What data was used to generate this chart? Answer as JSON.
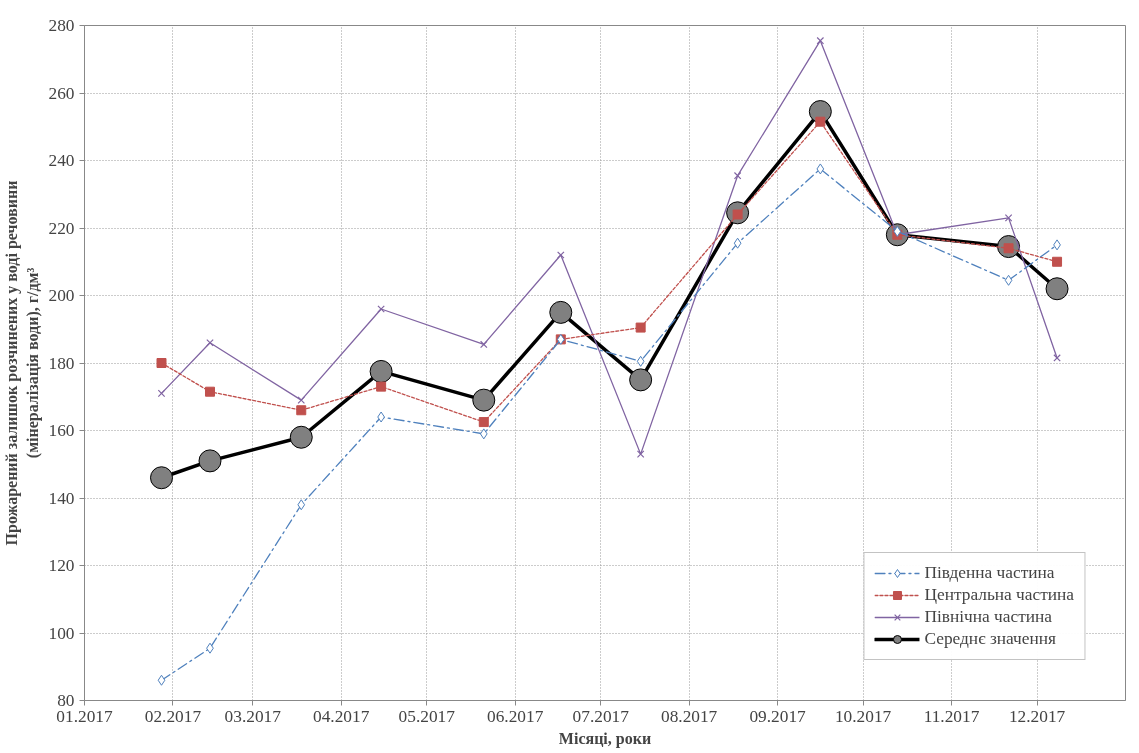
{
  "chart_data": {
    "type": "line",
    "xlabel": "Місяці, роки",
    "ylabel": "Прожарений залишок розчинених у воді речовини\n(мінералізація води), г/дм³",
    "x": [
      "2017-01-28",
      "2017-02-14",
      "2017-03-18",
      "2017-04-15",
      "2017-05-21",
      "2017-06-17",
      "2017-07-15",
      "2017-08-18",
      "2017-09-16",
      "2017-10-13",
      "2017-11-21",
      "2017-12-08"
    ],
    "xlim": [
      "2017-01-01",
      "2018-01-01"
    ],
    "xticks": [
      {
        "value": "2017-01-01",
        "label": "01.2017"
      },
      {
        "value": "2017-02-01",
        "label": "02.2017"
      },
      {
        "value": "2017-03-01",
        "label": "03.2017"
      },
      {
        "value": "2017-04-01",
        "label": "04.2017"
      },
      {
        "value": "2017-05-01",
        "label": "05.2017"
      },
      {
        "value": "2017-06-01",
        "label": "06.2017"
      },
      {
        "value": "2017-07-01",
        "label": "07.2017"
      },
      {
        "value": "2017-08-01",
        "label": "08.2017"
      },
      {
        "value": "2017-09-01",
        "label": "09.2017"
      },
      {
        "value": "2017-10-01",
        "label": "10.2017"
      },
      {
        "value": "2017-11-01",
        "label": "11.2017"
      },
      {
        "value": "2017-12-01",
        "label": "12.2017"
      }
    ],
    "ylim": [
      80,
      280
    ],
    "yticks": [
      80,
      100,
      120,
      140,
      160,
      180,
      200,
      220,
      240,
      260,
      280
    ],
    "grid": true,
    "legend": "bottom right",
    "series": [
      {
        "name": "Південна частина",
        "color": "#4f81bd",
        "marker": "diamond",
        "line_style": "dashed",
        "values": [
          86,
          95.5,
          138,
          164,
          159,
          187,
          180.5,
          215.5,
          237.5,
          219,
          204.5,
          215
        ]
      },
      {
        "name": "Центральна частина",
        "color": "#c0504d",
        "marker": "square",
        "line_style": "dotted",
        "values": [
          180,
          171.5,
          166,
          173,
          162.5,
          187,
          190.5,
          224,
          251.5,
          218,
          214,
          210
        ]
      },
      {
        "name": "Північна частина",
        "color": "#8064a2",
        "marker": "cross",
        "line_style": "solid",
        "values": [
          171,
          186,
          169,
          196,
          185.5,
          212,
          153,
          235.5,
          275.5,
          218,
          223,
          181.5
        ]
      },
      {
        "name": "Середнє значення",
        "color": "#000000",
        "marker": "circle",
        "line_style": "solid",
        "values": [
          146,
          151,
          158,
          177.5,
          169,
          195,
          175,
          224.5,
          254.5,
          218,
          214.5,
          202
        ]
      }
    ]
  }
}
